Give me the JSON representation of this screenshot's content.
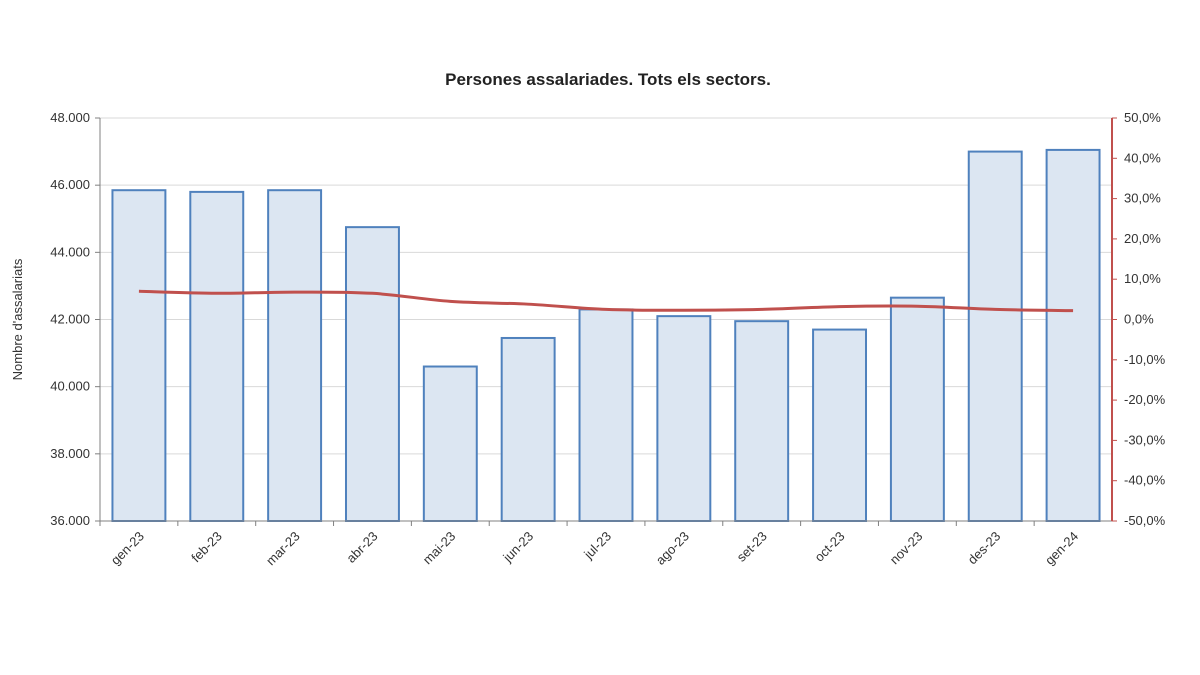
{
  "chart_data": {
    "type": "bar",
    "title": "Persones assalariades. Tots els sectors.",
    "ylabel": "Nombre d'assalariats",
    "y2label": "",
    "categories": [
      "gen-23",
      "feb-23",
      "mar-23",
      "abr-23",
      "mai-23",
      "jun-23",
      "jul-23",
      "ago-23",
      "set-23",
      "oct-23",
      "nov-23",
      "des-23",
      "gen-24"
    ],
    "ylim": [
      36000,
      48000
    ],
    "y2lim": [
      -50,
      50
    ],
    "yticks": [
      "36.000",
      "38.000",
      "40.000",
      "42.000",
      "44.000",
      "46.000",
      "48.000"
    ],
    "y2ticks": [
      "-50,0%",
      "-40,0%",
      "-30,0%",
      "-20,0%",
      "-10,0%",
      "0,0%",
      "10,0%",
      "20,0%",
      "30,0%",
      "40,0%",
      "50,0%"
    ],
    "series": [
      {
        "kind": "bar",
        "axis": "left",
        "values": [
          45850,
          45800,
          45850,
          44750,
          40600,
          41450,
          42300,
          42100,
          41950,
          41700,
          42650,
          47000,
          47050
        ]
      },
      {
        "kind": "line",
        "axis": "right",
        "values": [
          7.0,
          6.5,
          6.8,
          6.5,
          4.5,
          3.8,
          2.5,
          2.3,
          2.5,
          3.2,
          3.3,
          2.5,
          2.2
        ]
      }
    ],
    "grid": true,
    "colors": {
      "bar_fill": "#dce6f2",
      "bar_stroke": "#4f81bd",
      "line": "#c0504d",
      "right_axis": "#c0504d",
      "grid": "#d9d9d9"
    }
  }
}
